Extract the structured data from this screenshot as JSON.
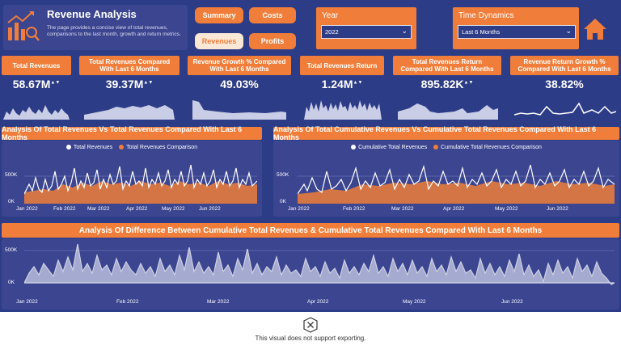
{
  "header": {
    "title": "Revenue Analysis",
    "description": "The page provides a concise view of total revenues, comparisons to the last month, growth and return metrics."
  },
  "nav": {
    "summary": "Summary",
    "costs": "Costs",
    "revenues": "Revenues",
    "profits": "Profits"
  },
  "slicers": {
    "year": {
      "label": "Year",
      "value": "2022"
    },
    "time_dynamics": {
      "label": "Time Dynamics",
      "value": "Last 6 Months"
    }
  },
  "kpis": [
    {
      "title": "Total Revenues",
      "value": "58.67M"
    },
    {
      "title": "Total Revenues Compared With Last 6 Months",
      "value": "39.37M"
    },
    {
      "title": "Revenue Growth % Compared With Last 6 Months",
      "value": "49.03%"
    },
    {
      "title": "Total Revenues Return",
      "value": "1.24M"
    },
    {
      "title": "Total Revenues Return Compared With Last 6 Months",
      "value": "895.82K"
    },
    {
      "title": "Revenue Return Growth % Compared With Last 6 Months",
      "value": "38.82%"
    }
  ],
  "charts": {
    "left": {
      "title": "Analysis Of Total Revenues Vs Total Revenues Compared With Last 6 Months",
      "legend": [
        "Total Revenues",
        "Total Revenues Comparison"
      ],
      "yticks": [
        "500K",
        "0K"
      ],
      "xticks": [
        "Jan 2022",
        "Feb 2022",
        "Mar 2022",
        "Apr 2022",
        "May 2022",
        "Jun 2022"
      ]
    },
    "right": {
      "title": "Analysis Of Total Cumulative Revenues Vs Cumulative Total Revenues Compared With Last 6 Months",
      "legend": [
        "Cumulative Total Revenues",
        "Cumulative Total Revenues Comparison"
      ],
      "yticks": [
        "500K",
        "0K"
      ],
      "xticks": [
        "Jan 2022",
        "Feb 2022",
        "Mar 2022",
        "Apr 2022",
        "May 2022",
        "Jun 2022"
      ]
    },
    "bottom": {
      "title": "Analysis Of Difference Between Cumulative Total Revenues & Cumulative Total Revenues Compared With Last 6 Months",
      "yticks": [
        "500K",
        "0K"
      ],
      "xticks": [
        "Jan 2022",
        "Feb 2022",
        "Mar 2022",
        "Apr 2022",
        "May 2022",
        "Jun 2022"
      ]
    }
  },
  "export_message": "This visual does not support exporting.",
  "colors": {
    "background": "#2d3c86",
    "accent": "#f07e3a",
    "series_primary": "#ffffff",
    "series_secondary": "#f07e3a"
  },
  "icons": {
    "logo": "chart-analysis-icon",
    "home": "home-icon",
    "error": "x-circle-icon"
  }
}
